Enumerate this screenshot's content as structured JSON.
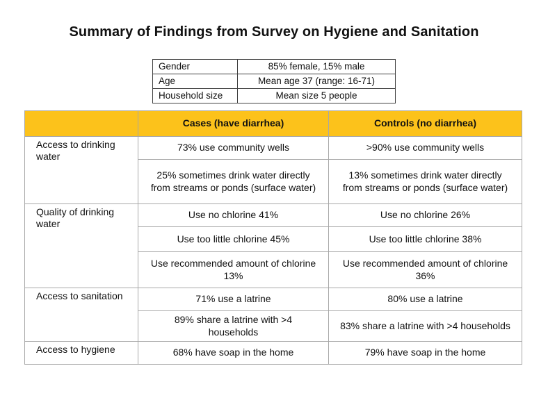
{
  "page": {
    "title": "Summary of Findings from Survey on Hygiene and Sanitation"
  },
  "demographics": {
    "rows": [
      {
        "label": "Gender",
        "value": "85% female, 15% male"
      },
      {
        "label": "Age",
        "value": "Mean age 37 (range: 16-71)"
      },
      {
        "label": "Household size",
        "value": "Mean size 5 people"
      }
    ]
  },
  "findings": {
    "column_headers": {
      "category": "",
      "cases": "Cases (have diarrhea)",
      "controls": "Controls (no diarrhea)"
    },
    "groups": [
      {
        "category": "Access to drinking water",
        "rows": [
          {
            "cases": "73% use community wells",
            "controls": ">90% use community wells"
          },
          {
            "cases": "25% sometimes drink water directly from streams or ponds (surface water)",
            "controls": "13% sometimes drink water directly from streams or ponds (surface water)"
          }
        ]
      },
      {
        "category": "Quality of drinking water",
        "rows": [
          {
            "cases": "Use no chlorine 41%",
            "controls": "Use no chlorine 26%"
          },
          {
            "cases": "Use too little chlorine 45%",
            "controls": "Use too little chlorine 38%"
          },
          {
            "cases": "Use recommended amount of chlorine 13%",
            "controls": "Use recommended amount of chlorine 36%"
          }
        ]
      },
      {
        "category": "Access to sanitation",
        "rows": [
          {
            "cases": "71% use a latrine",
            "controls": "80% use a latrine"
          },
          {
            "cases": "89% share a latrine with >4 households",
            "controls": "83% share a latrine with >4 households"
          }
        ]
      },
      {
        "category": "Access to hygiene",
        "rows": [
          {
            "cases": "68% have soap in the home",
            "controls": "79% have soap in the home"
          }
        ]
      }
    ]
  },
  "colors": {
    "header_bg": "#FCC21B",
    "grid_line": "#A7A7A7",
    "header_divider": "#B5952B",
    "demo_border": "#3F3F3F",
    "text": "#111111",
    "page_bg": "#FFFFFF"
  }
}
